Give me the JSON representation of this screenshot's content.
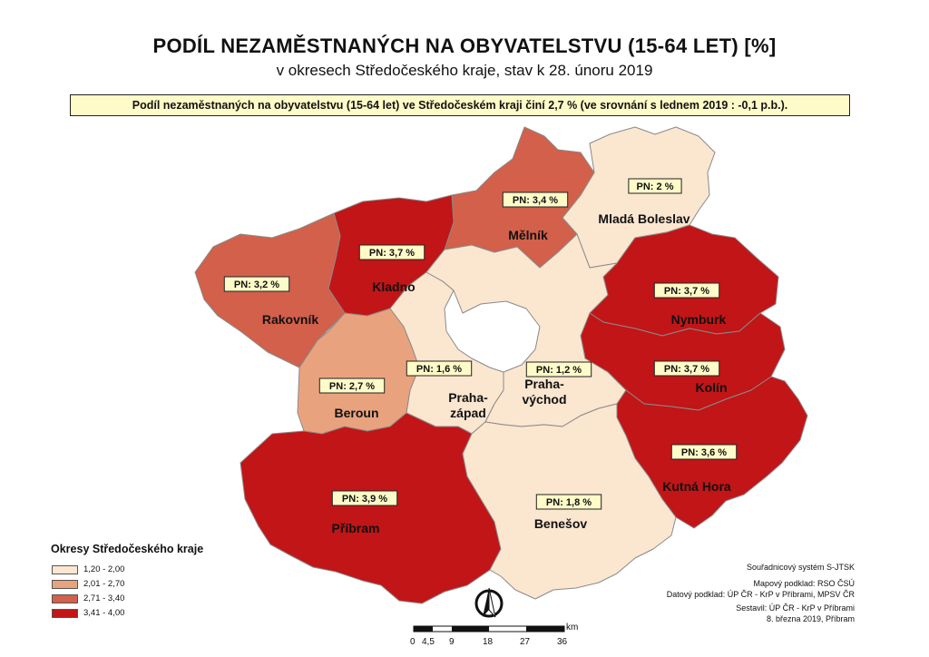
{
  "title": "PODÍL NEZAMĚSTNANÝCH NA OBYVATELSTVU (15-64 LET) [%]",
  "subtitle": "v okresech Středočeského kraje, stav k 28. únoru 2019",
  "info": "Podíl nezaměstnaných na obyvatelstvu (15-64 let) ve Středočeském kraji činí 2,7 % (ve srovnání s lednem 2019 :  -0,1 p.b.).",
  "colors": {
    "class1": "#fbe6cf",
    "class2": "#e8a37e",
    "class3": "#d2604a",
    "class4": "#c11517",
    "border": "#8a8a8a"
  },
  "districts": [
    {
      "name": "Mladá Boleslav",
      "pn_label": "PN: 2 %",
      "value": 2.0,
      "class": "class1"
    },
    {
      "name": "Mělník",
      "pn_label": "PN: 3,4 %",
      "value": 3.4,
      "class": "class3"
    },
    {
      "name": "Kladno",
      "pn_label": "PN: 3,7 %",
      "value": 3.7,
      "class": "class4"
    },
    {
      "name": "Rakovník",
      "pn_label": "PN: 3,2 %",
      "value": 3.2,
      "class": "class3"
    },
    {
      "name": "Nymburk",
      "pn_label": "PN: 3,7 %",
      "value": 3.7,
      "class": "class4"
    },
    {
      "name": "Kolín",
      "pn_label": "PN: 3,7 %",
      "value": 3.7,
      "class": "class4"
    },
    {
      "name": "Beroun",
      "pn_label": "PN: 2,7 %",
      "value": 2.7,
      "class": "class2"
    },
    {
      "name": "Praha-\nzápad",
      "line1": "Praha-",
      "line2": "západ",
      "pn_label": "PN: 1,6 %",
      "value": 1.6,
      "class": "class1"
    },
    {
      "name": "Praha-\nvýchod",
      "line1": "Praha-",
      "line2": "východ",
      "pn_label": "PN: 1,2 %",
      "value": 1.2,
      "class": "class1"
    },
    {
      "name": "Kutná Hora",
      "pn_label": "PN: 3,6 %",
      "value": 3.6,
      "class": "class4"
    },
    {
      "name": "Příbram",
      "pn_label": "PN: 3,9 %",
      "value": 3.9,
      "class": "class4"
    },
    {
      "name": "Benešov",
      "pn_label": "PN: 1,8 %",
      "value": 1.8,
      "class": "class1"
    }
  ],
  "legend": {
    "title": "Okresy Středočeského kraje",
    "items": [
      "1,20 - 2,00",
      "2,01 - 2,70",
      "2,71 - 3,40",
      "3,41 - 4,00"
    ]
  },
  "credits": {
    "crs": "Souřadnicový systém S-JTSK",
    "basemap": "Mapový podklad:  RSO ČSÚ",
    "data": "Datový podklad: ÚP ČR - KrP v Příbrami, MPSV ČR",
    "author": "Sestavil:  ÚP ČR - KrP v Příbrami",
    "date": "8. března 2019, Příbram"
  },
  "scale": {
    "unit": "km",
    "ticks": [
      "0",
      "4,5",
      "9",
      "18",
      "27",
      "36"
    ]
  }
}
